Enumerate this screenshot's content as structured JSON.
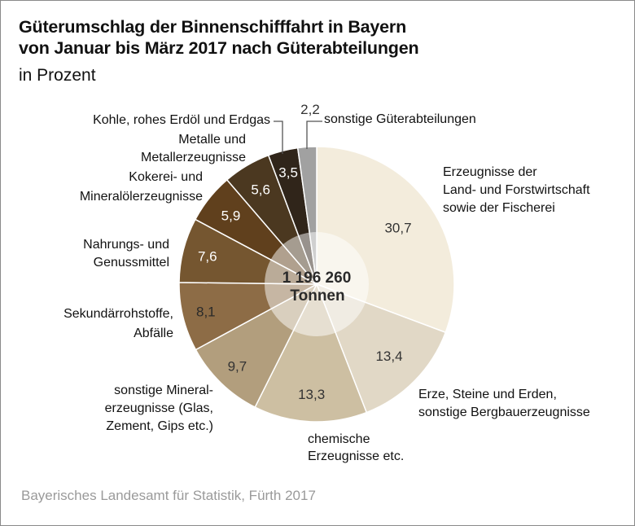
{
  "header": {
    "title_line1": "Güterumschlag der Binnenschifffahrt in Bayern",
    "title_line2": "von Januar bis März 2017 nach Güterabteilungen",
    "subtitle": "in Prozent"
  },
  "footer": {
    "source": "Bayerisches Landesamt für Statistik, Fürth 2017"
  },
  "chart_data": {
    "type": "pie",
    "title": "Güterumschlag der Binnenschifffahrt in Bayern von Januar bis März 2017 nach Güterabteilungen",
    "unit": "in Prozent",
    "center_label": {
      "value": "1 196 260",
      "unit": "Tonnen"
    },
    "start": "12 o'clock, clockwise",
    "slices": [
      {
        "label": "Erzeugnisse der Land- und Forstwirtschaft sowie der Fischerei",
        "value": 30.7,
        "display": "30,7",
        "color": "#f3ecdc",
        "label_color": "#333333"
      },
      {
        "label": "Erze, Steine und Erden, sonstige Bergbauerzeugnisse",
        "value": 13.4,
        "display": "13,4",
        "color": "#e1d8c6",
        "label_color": "#333333"
      },
      {
        "label": "chemische Erzeugnisse etc.",
        "value": 13.3,
        "display": "13,3",
        "color": "#cdbfa2",
        "label_color": "#333333"
      },
      {
        "label": "sonstige Mineralerzeugnisse (Glas, Zement, Gips etc.)",
        "value": 9.7,
        "display": "9,7",
        "color": "#b29e7d",
        "label_color": "#333333"
      },
      {
        "label": "Sekundärrohstoffe, Abfälle",
        "value": 8.1,
        "display": "8,1",
        "color": "#8d6c46",
        "label_color": "#2a2a2a"
      },
      {
        "label": "Nahrungs- und Genussmittel",
        "value": 7.6,
        "display": "7,6",
        "color": "#755630",
        "label_color": "#ffffff"
      },
      {
        "label": "Kokerei- und Mineralölerzeugnisse",
        "value": 5.9,
        "display": "5,9",
        "color": "#60401d",
        "label_color": "#ffffff"
      },
      {
        "label": "Metalle und Metallerzeugnisse",
        "value": 5.6,
        "display": "5,6",
        "color": "#4b3820",
        "label_color": "#ffffff"
      },
      {
        "label": "Kohle, rohes Erdöl und Erdgas",
        "value": 3.5,
        "display": "3,5",
        "color": "#30251a",
        "label_color": "#ffffff"
      },
      {
        "label": "sonstige Güterabteilungen",
        "value": 2.2,
        "display": "2,2",
        "color": "#a1a1a1",
        "label_color": "#333333"
      }
    ],
    "category_labels": {
      "land": [
        "Erzeugnisse der",
        "Land- und Forstwirtschaft",
        "sowie der Fischerei"
      ],
      "erze": [
        "Erze, Steine und Erden,",
        "sonstige Bergbauerzeugnisse"
      ],
      "chemie": [
        "chemische",
        "Erzeugnisse etc."
      ],
      "mineral": [
        "sonstige Mineral-",
        "erzeugnisse (Glas,",
        "Zement, Gips etc.)"
      ],
      "sekundaer": [
        "Sekundärrohstoffe,",
        "Abfälle"
      ],
      "nahrung": [
        "Nahrungs- und",
        "Genussmittel"
      ],
      "kokerei": [
        "Kokerei- und",
        "Mineralölerzeugnisse"
      ],
      "metalle": [
        "Metalle und",
        "Metallerzeugnisse"
      ],
      "kohle": [
        "Kohle, rohes Erdöl und Erdgas"
      ],
      "sonstige": [
        "sonstige Güterabteilungen"
      ]
    }
  }
}
